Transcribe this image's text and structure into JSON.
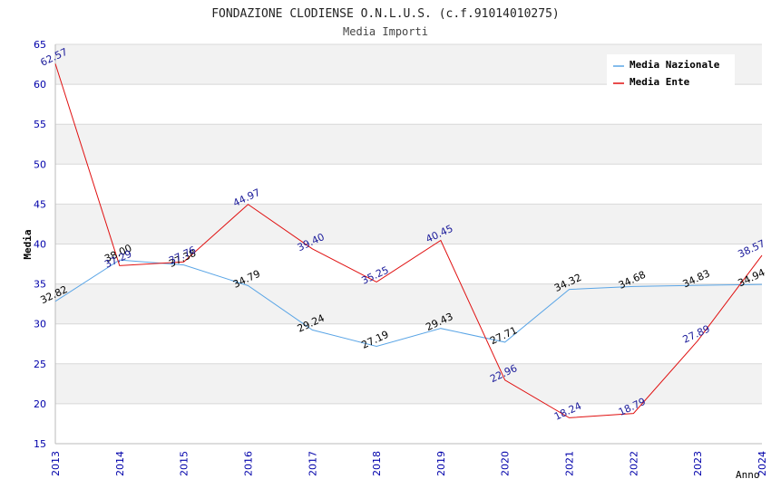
{
  "chart_data": {
    "type": "line",
    "title": "FONDAZIONE CLODIENSE O.N.L.U.S. (c.f.91014010275)",
    "subtitle": "Media Importi",
    "xlabel": "Anno",
    "ylabel": "Media",
    "ylim": [
      15,
      65
    ],
    "yticks": [
      "15",
      "20",
      "25",
      "30",
      "35",
      "40",
      "45",
      "50",
      "55",
      "60",
      "65"
    ],
    "categories": [
      "2013",
      "2014",
      "2015",
      "2016",
      "2017",
      "2018",
      "2019",
      "2020",
      "2021",
      "2022",
      "2023",
      "2024"
    ],
    "grid": true,
    "legend_position": "top-right",
    "series": [
      {
        "name": "Media Nazionale",
        "color": "#5aa5e6",
        "label_color": "#000000",
        "values": [
          32.82,
          38.0,
          37.38,
          34.79,
          29.24,
          27.19,
          29.43,
          27.71,
          34.32,
          34.68,
          34.83,
          34.94
        ],
        "labels": [
          "32.82",
          "38.00",
          "37.38",
          "34.79",
          "29.24",
          "27.19",
          "29.43",
          "27.71",
          "34.32",
          "34.68",
          "34.83",
          "34.94"
        ]
      },
      {
        "name": "Media Ente",
        "color": "#e01010",
        "label_color": "#1a1a9a",
        "values": [
          62.57,
          37.29,
          37.76,
          44.97,
          39.4,
          35.25,
          40.45,
          22.96,
          18.24,
          18.79,
          27.89,
          38.57
        ],
        "labels": [
          "62.57",
          "37.29",
          "37.76",
          "44.97",
          "39.40",
          "35.25",
          "40.45",
          "22.96",
          "18.24",
          "18.79",
          "27.89",
          "38.57"
        ]
      }
    ],
    "colors": {
      "band": "#f2f2f2",
      "grid": "#d8d8d8",
      "tick_label": "#0000aa"
    }
  }
}
